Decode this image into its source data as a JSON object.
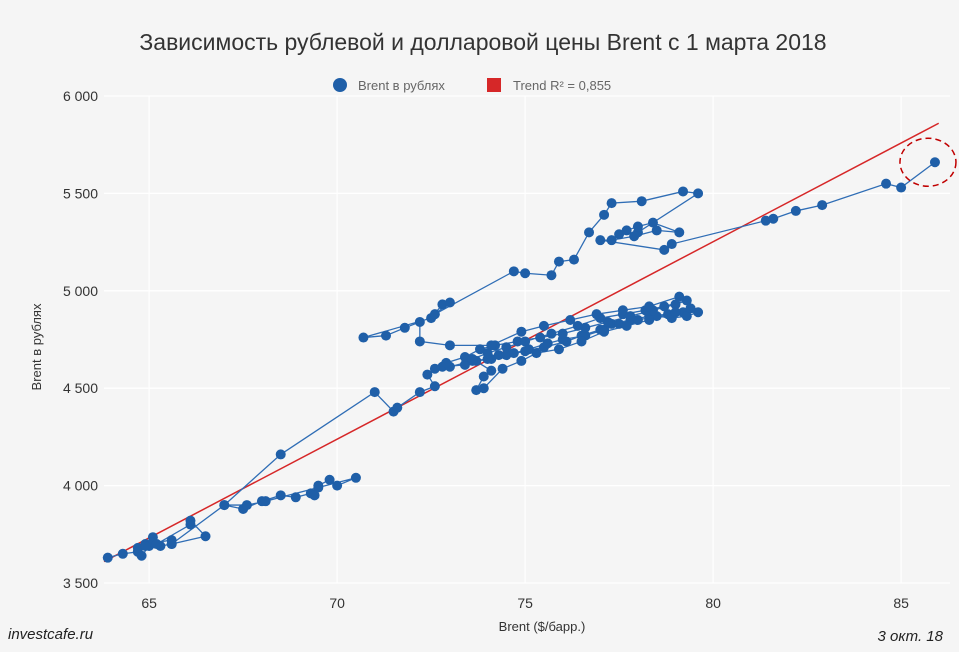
{
  "chart_data": {
    "type": "scatter",
    "title": "Зависимость рублевой и долларовой цены Brent с 1 марта 2018",
    "xlabel": "Brent ($/барр.)",
    "ylabel": "Brent в рублях",
    "xlim": [
      63.8,
      86.3
    ],
    "ylim": [
      3500,
      6000
    ],
    "x_ticks": [
      65,
      70,
      75,
      80,
      85
    ],
    "x_tick_labels": [
      "65",
      "70",
      "75",
      "80",
      "85"
    ],
    "y_ticks": [
      3500,
      4000,
      4500,
      5000,
      5500,
      6000
    ],
    "y_tick_labels": [
      "3 500",
      "4 000",
      "4 500",
      "5 000",
      "5 500",
      "6 000"
    ],
    "grid": true,
    "legend_position": "top",
    "colors": {
      "series": "#1f5fa8",
      "trend": "#d62728",
      "highlight": "#c00000",
      "background": "#f5f5f5"
    },
    "series": [
      {
        "name": "Brent в рублях",
        "connected": true,
        "points": [
          [
            63.9,
            3630
          ],
          [
            64.3,
            3650
          ],
          [
            64.7,
            3660
          ],
          [
            64.8,
            3640
          ],
          [
            65.0,
            3690
          ],
          [
            65.1,
            3735
          ],
          [
            65.3,
            3690
          ],
          [
            65.6,
            3700
          ],
          [
            65.6,
            3720
          ],
          [
            64.9,
            3700
          ],
          [
            65.1,
            3710
          ],
          [
            64.7,
            3680
          ],
          [
            64.9,
            3690
          ],
          [
            65.2,
            3700
          ],
          [
            66.1,
            3800
          ],
          [
            66.1,
            3820
          ],
          [
            66.5,
            3740
          ],
          [
            65.6,
            3700
          ],
          [
            67.0,
            3900
          ],
          [
            67.5,
            3880
          ],
          [
            68.0,
            3920
          ],
          [
            68.5,
            3950
          ],
          [
            68.9,
            3940
          ],
          [
            69.3,
            3960
          ],
          [
            69.4,
            3950
          ],
          [
            69.5,
            4000
          ],
          [
            69.8,
            4030
          ],
          [
            70.0,
            4000
          ],
          [
            70.5,
            4040
          ],
          [
            69.5,
            3990
          ],
          [
            68.1,
            3920
          ],
          [
            67.6,
            3900
          ],
          [
            67.0,
            3900
          ],
          [
            68.5,
            4160
          ],
          [
            71.0,
            4480
          ],
          [
            71.5,
            4380
          ],
          [
            71.6,
            4400
          ],
          [
            72.2,
            4480
          ],
          [
            72.6,
            4510
          ],
          [
            72.4,
            4570
          ],
          [
            72.8,
            4610
          ],
          [
            73.4,
            4620
          ],
          [
            73.7,
            4640
          ],
          [
            74.1,
            4650
          ],
          [
            74.5,
            4670
          ],
          [
            75.0,
            4690
          ],
          [
            75.5,
            4710
          ],
          [
            76.1,
            4740
          ],
          [
            76.5,
            4770
          ],
          [
            77.0,
            4800
          ],
          [
            77.3,
            4830
          ],
          [
            77.8,
            4850
          ],
          [
            78.3,
            4870
          ],
          [
            78.8,
            4880
          ],
          [
            79.2,
            4890
          ],
          [
            79.6,
            4890
          ],
          [
            79.3,
            4870
          ],
          [
            78.9,
            4860
          ],
          [
            78.5,
            4870
          ],
          [
            78.0,
            4850
          ],
          [
            77.5,
            4830
          ],
          [
            77.1,
            4800
          ],
          [
            76.6,
            4770
          ],
          [
            76.0,
            4750
          ],
          [
            75.6,
            4730
          ],
          [
            75.1,
            4700
          ],
          [
            74.7,
            4680
          ],
          [
            74.3,
            4670
          ],
          [
            74.0,
            4650
          ],
          [
            73.6,
            4640
          ],
          [
            73.0,
            4610
          ],
          [
            72.6,
            4600
          ],
          [
            72.9,
            4630
          ],
          [
            73.4,
            4660
          ],
          [
            73.8,
            4700
          ],
          [
            74.2,
            4720
          ],
          [
            74.8,
            4740
          ],
          [
            75.4,
            4760
          ],
          [
            76.0,
            4780
          ],
          [
            76.6,
            4810
          ],
          [
            77.2,
            4840
          ],
          [
            77.8,
            4870
          ],
          [
            78.4,
            4900
          ],
          [
            79.0,
            4930
          ],
          [
            79.3,
            4950
          ],
          [
            78.7,
            4920
          ],
          [
            78.2,
            4900
          ],
          [
            77.6,
            4880
          ],
          [
            77.0,
            4860
          ],
          [
            76.4,
            4820
          ],
          [
            75.7,
            4780
          ],
          [
            75.0,
            4740
          ],
          [
            74.5,
            4710
          ],
          [
            74.0,
            4680
          ],
          [
            73.6,
            4650
          ],
          [
            74.1,
            4590
          ],
          [
            73.9,
            4560
          ],
          [
            73.7,
            4490
          ],
          [
            73.9,
            4500
          ],
          [
            74.4,
            4600
          ],
          [
            74.9,
            4640
          ],
          [
            75.3,
            4680
          ],
          [
            75.9,
            4700
          ],
          [
            76.5,
            4740
          ],
          [
            77.1,
            4790
          ],
          [
            77.7,
            4820
          ],
          [
            78.3,
            4850
          ],
          [
            79.0,
            4890
          ],
          [
            79.4,
            4910
          ],
          [
            79.1,
            4970
          ],
          [
            78.3,
            4920
          ],
          [
            77.6,
            4900
          ],
          [
            76.9,
            4880
          ],
          [
            76.2,
            4850
          ],
          [
            75.5,
            4820
          ],
          [
            74.9,
            4790
          ],
          [
            74.1,
            4720
          ],
          [
            73.0,
            4720
          ],
          [
            72.2,
            4740
          ],
          [
            72.2,
            4840
          ],
          [
            71.8,
            4810
          ],
          [
            71.3,
            4770
          ],
          [
            70.7,
            4760
          ],
          [
            72.5,
            4860
          ],
          [
            72.8,
            4930
          ],
          [
            73.0,
            4940
          ],
          [
            72.6,
            4880
          ],
          [
            74.7,
            5100
          ],
          [
            75.0,
            5090
          ],
          [
            75.7,
            5080
          ],
          [
            75.9,
            5150
          ],
          [
            76.3,
            5160
          ],
          [
            76.7,
            5300
          ],
          [
            77.1,
            5390
          ],
          [
            77.3,
            5450
          ],
          [
            78.1,
            5460
          ],
          [
            79.2,
            5510
          ],
          [
            79.6,
            5500
          ],
          [
            78.0,
            5300
          ],
          [
            77.5,
            5290
          ],
          [
            77.7,
            5310
          ],
          [
            78.0,
            5330
          ],
          [
            78.4,
            5350
          ],
          [
            79.1,
            5300
          ],
          [
            78.5,
            5310
          ],
          [
            77.9,
            5280
          ],
          [
            77.3,
            5260
          ],
          [
            77.0,
            5260
          ],
          [
            78.7,
            5210
          ],
          [
            78.9,
            5240
          ],
          [
            81.4,
            5360
          ],
          [
            81.6,
            5370
          ],
          [
            82.2,
            5410
          ],
          [
            82.9,
            5440
          ],
          [
            84.6,
            5550
          ],
          [
            85.0,
            5530
          ],
          [
            85.9,
            5660
          ]
        ]
      }
    ],
    "trend": {
      "name": "Trend R² = 0,855",
      "x": [
        63.8,
        86.0
      ],
      "y": [
        3610,
        5860
      ]
    },
    "highlight_circle": {
      "x": 85.9,
      "y": 5660
    }
  },
  "legend": {
    "series_label": "Brent в рублях",
    "trend_label": "Trend R² = 0,855"
  },
  "footer": {
    "source": "investcafe.ru",
    "date": "3 окт. 18"
  }
}
